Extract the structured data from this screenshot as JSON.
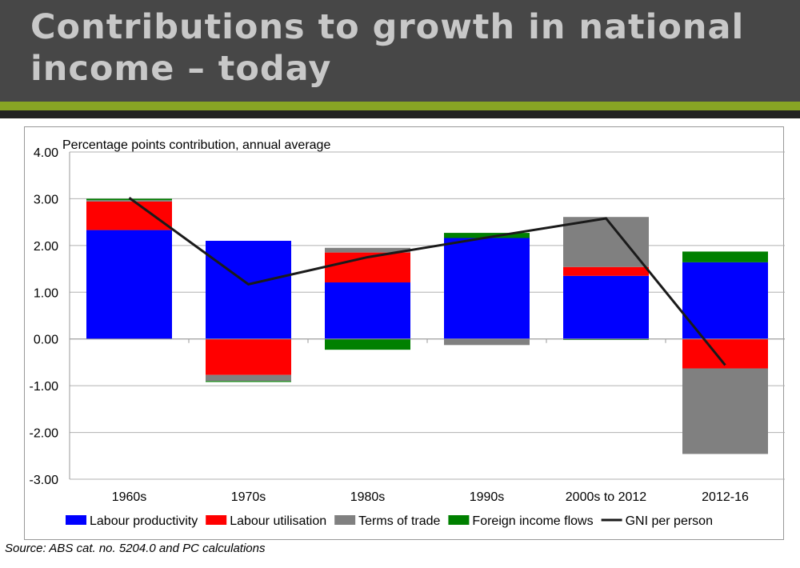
{
  "title": "Contributions to growth in national income – today",
  "source": "Source: ABS cat. no. 5204.0 and PC calculations",
  "chart_data": {
    "type": "bar",
    "stacked": true,
    "subtitle": "Percentage points contribution, annual average",
    "categories": [
      "1960s",
      "1970s",
      "1980s",
      "1990s",
      "2000s to 2012",
      "2012-16"
    ],
    "ylim": [
      -3,
      4
    ],
    "yticks": [
      "4.00",
      "3.00",
      "2.00",
      "1.00",
      "0.00",
      "-1.00",
      "-2.00",
      "-3.00"
    ],
    "grid": true,
    "legend_position": "bottom",
    "series": [
      {
        "name": "Labour productivity",
        "color": "#0000ff",
        "values": [
          2.33,
          2.1,
          1.21,
          2.16,
          1.35,
          1.64
        ]
      },
      {
        "name": "Labour utilisation",
        "color": "#ff0000",
        "values": [
          0.61,
          -0.77,
          0.64,
          0.0,
          0.19,
          -0.63
        ]
      },
      {
        "name": "Terms of trade",
        "color": "#808080",
        "values": [
          0.03,
          -0.13,
          0.1,
          -0.13,
          1.07,
          -1.83
        ]
      },
      {
        "name": "Foreign income flows",
        "color": "#008000",
        "values": [
          0.03,
          -0.02,
          -0.23,
          0.11,
          -0.02,
          0.23
        ]
      }
    ],
    "line": {
      "name": "GNI per person",
      "color": "#1a1a1a",
      "values": [
        3.02,
        1.17,
        1.75,
        2.17,
        2.58,
        -0.56
      ]
    }
  }
}
